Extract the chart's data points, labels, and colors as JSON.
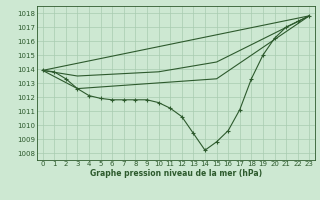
{
  "title": "Graphe pression niveau de la mer (hPa)",
  "bg_color": "#cde8d2",
  "grid_color": "#a8ccb0",
  "line_color": "#2d5a2d",
  "xlim": [
    -0.5,
    23.5
  ],
  "ylim": [
    1007.5,
    1018.5
  ],
  "yticks": [
    1008,
    1009,
    1010,
    1011,
    1012,
    1013,
    1014,
    1015,
    1016,
    1017,
    1018
  ],
  "xticks": [
    0,
    1,
    2,
    3,
    4,
    5,
    6,
    7,
    8,
    9,
    10,
    11,
    12,
    13,
    14,
    15,
    16,
    17,
    18,
    19,
    20,
    21,
    22,
    23
  ],
  "line_main": {
    "x": [
      0,
      1,
      2,
      3,
      4,
      5,
      6,
      7,
      8,
      9,
      10,
      11,
      12,
      13,
      14,
      15,
      16,
      17,
      18,
      19,
      20,
      21,
      22,
      23
    ],
    "y": [
      1013.9,
      1013.8,
      1013.3,
      1012.6,
      1012.1,
      1011.9,
      1011.8,
      1011.8,
      1011.8,
      1011.8,
      1011.6,
      1011.2,
      1010.6,
      1009.4,
      1008.2,
      1008.8,
      1009.6,
      1011.1,
      1013.3,
      1015.0,
      1016.2,
      1017.0,
      1017.4,
      1017.8
    ]
  },
  "line_upper": {
    "x": [
      0,
      23
    ],
    "y": [
      1013.9,
      1017.8
    ]
  },
  "line_mid": {
    "x": [
      0,
      3,
      10,
      15,
      23
    ],
    "y": [
      1013.9,
      1013.5,
      1013.8,
      1014.5,
      1017.8
    ]
  },
  "line_lower": {
    "x": [
      0,
      3,
      15,
      23
    ],
    "y": [
      1013.9,
      1012.6,
      1013.3,
      1017.8
    ]
  }
}
